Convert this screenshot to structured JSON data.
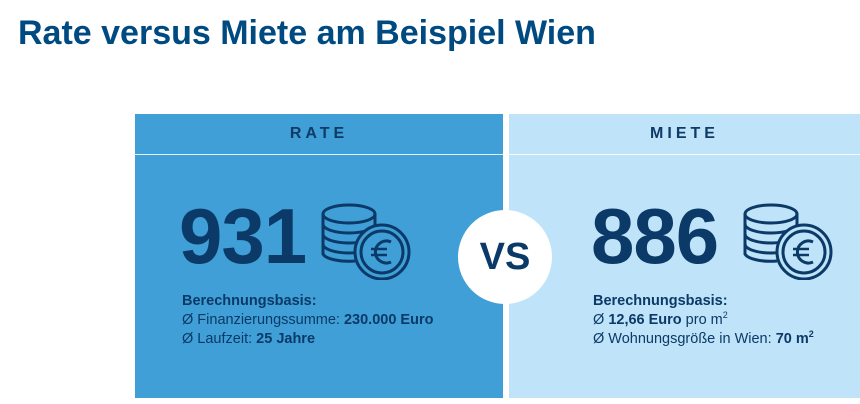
{
  "title": "Rate versus Miete am Beispiel Wien",
  "rate": {
    "header": "RATE",
    "value": "931",
    "basis_label": "Berechnungsbasis:",
    "line1_prefix": "Ø Finanzierungssumme: ",
    "line1_value": "230.000 Euro",
    "line2_prefix": "Ø Laufzeit: ",
    "line2_value": "25 Jahre",
    "icon": "euro-coins-icon"
  },
  "vs": "VS",
  "miete": {
    "header": "MIETE",
    "value": "886",
    "basis_label": "Berechnungsbasis:",
    "line1_prefix": "Ø ",
    "line1_value": "12,66 Euro",
    "line1_suffix": " pro m",
    "line1_sup": "2",
    "line2_prefix": "Ø Wohnungsgröße in Wien: ",
    "line2_value": "70 m",
    "line2_sup": "2",
    "icon": "euro-coins-icon"
  },
  "colors": {
    "title": "#004a82",
    "rate_bg": "#3f9fd6",
    "miete_bg": "#bfe3f8",
    "dark_text": "#0b3a68"
  }
}
